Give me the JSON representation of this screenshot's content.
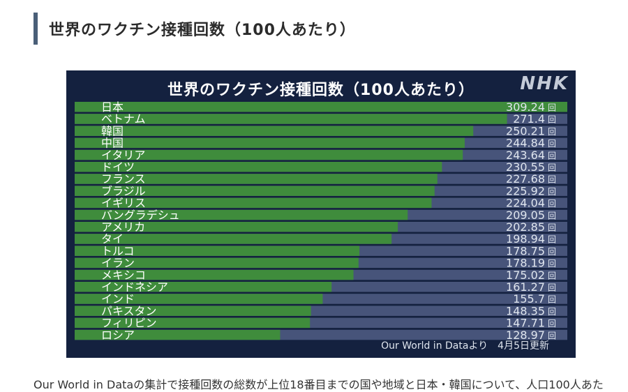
{
  "header": {
    "title": "世界のワクチン接種回数（100人あたり）"
  },
  "chart_box": {
    "logo": "NHK",
    "source": "Our World in Dataより",
    "date": "4月5日更新"
  },
  "caption": {
    "text": "Our World in Dataの集計で接種回数の総数が上位18番目までの国や地域と日本・韓国について、人口100人あた"
  },
  "colors": {
    "bar": "#3f8c3c",
    "track": "#47547a",
    "background": "#14213f",
    "value_text": "#dfe5ee"
  },
  "chart_data": {
    "type": "bar",
    "orientation": "horizontal",
    "title": "世界のワクチン接種回数（100人あたり）",
    "unit": "回",
    "xlim": [
      0,
      309.24
    ],
    "categories": [
      "日本",
      "ベトナム",
      "韓国",
      "中国",
      "イタリア",
      "ドイツ",
      "フランス",
      "ブラジル",
      "イギリス",
      "バングラデシュ",
      "アメリカ",
      "タイ",
      "トルコ",
      "イラン",
      "メキシコ",
      "インドネシア",
      "インド",
      "パキスタン",
      "フィリピン",
      "ロシア"
    ],
    "values": [
      309.24,
      271.4,
      250.21,
      244.84,
      243.64,
      230.55,
      227.68,
      225.92,
      224.04,
      209.05,
      202.85,
      198.94,
      178.75,
      178.19,
      175.02,
      161.27,
      155.7,
      148.35,
      147.71,
      128.97
    ],
    "value_labels": [
      "309.24",
      "271.4",
      "250.21",
      "244.84",
      "243.64",
      "230.55",
      "227.68",
      "225.92",
      "224.04",
      "209.05",
      "202.85",
      "198.94",
      "178.75",
      "178.19",
      "175.02",
      "161.27",
      "155.7",
      "148.35",
      "147.71",
      "128.97"
    ],
    "grid": false,
    "legend": "none"
  }
}
